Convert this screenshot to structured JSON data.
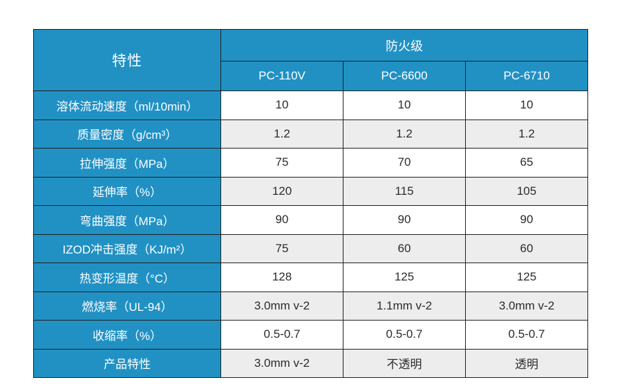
{
  "table": {
    "corner_header": "特性",
    "group_header": "防火级",
    "columns": [
      "PC-110V",
      "PC-6600",
      "PC-6710"
    ],
    "rows": [
      {
        "label": "溶体流动速度（ml/10min）",
        "values": [
          "10",
          "10",
          "10"
        ]
      },
      {
        "label": "质量密度（g/cm³）",
        "values": [
          "1.2",
          "1.2",
          "1.2"
        ]
      },
      {
        "label": "拉伸强度（MPa）",
        "values": [
          "75",
          "70",
          "65"
        ]
      },
      {
        "label": "延伸率（%）",
        "values": [
          "120",
          "115",
          "105"
        ]
      },
      {
        "label": "弯曲强度（MPa）",
        "values": [
          "90",
          "90",
          "90"
        ]
      },
      {
        "label": "IZOD冲击强度（KJ/m²）",
        "values": [
          "75",
          "60",
          "60"
        ]
      },
      {
        "label": "热变形温度（°C）",
        "values": [
          "128",
          "125",
          "125"
        ]
      },
      {
        "label": "燃烧率（UL-94）",
        "values": [
          "3.0mm v-2",
          "1.1mm v-2",
          "3.0mm v-2"
        ]
      },
      {
        "label": "收缩率（%）",
        "values": [
          "0.5-0.7",
          "0.5-0.7",
          "0.5-0.7"
        ]
      },
      {
        "label": "产品特性",
        "values": [
          "3.0mm v-2",
          "不透明",
          "透明"
        ]
      }
    ],
    "colors": {
      "header_bg": "#2191c4",
      "header_text": "#ffffff",
      "row_bg": "#ffffff",
      "row_alt_bg": "#ededee",
      "border": "#1f1f1f",
      "value_text": "#2b2b2b"
    }
  }
}
